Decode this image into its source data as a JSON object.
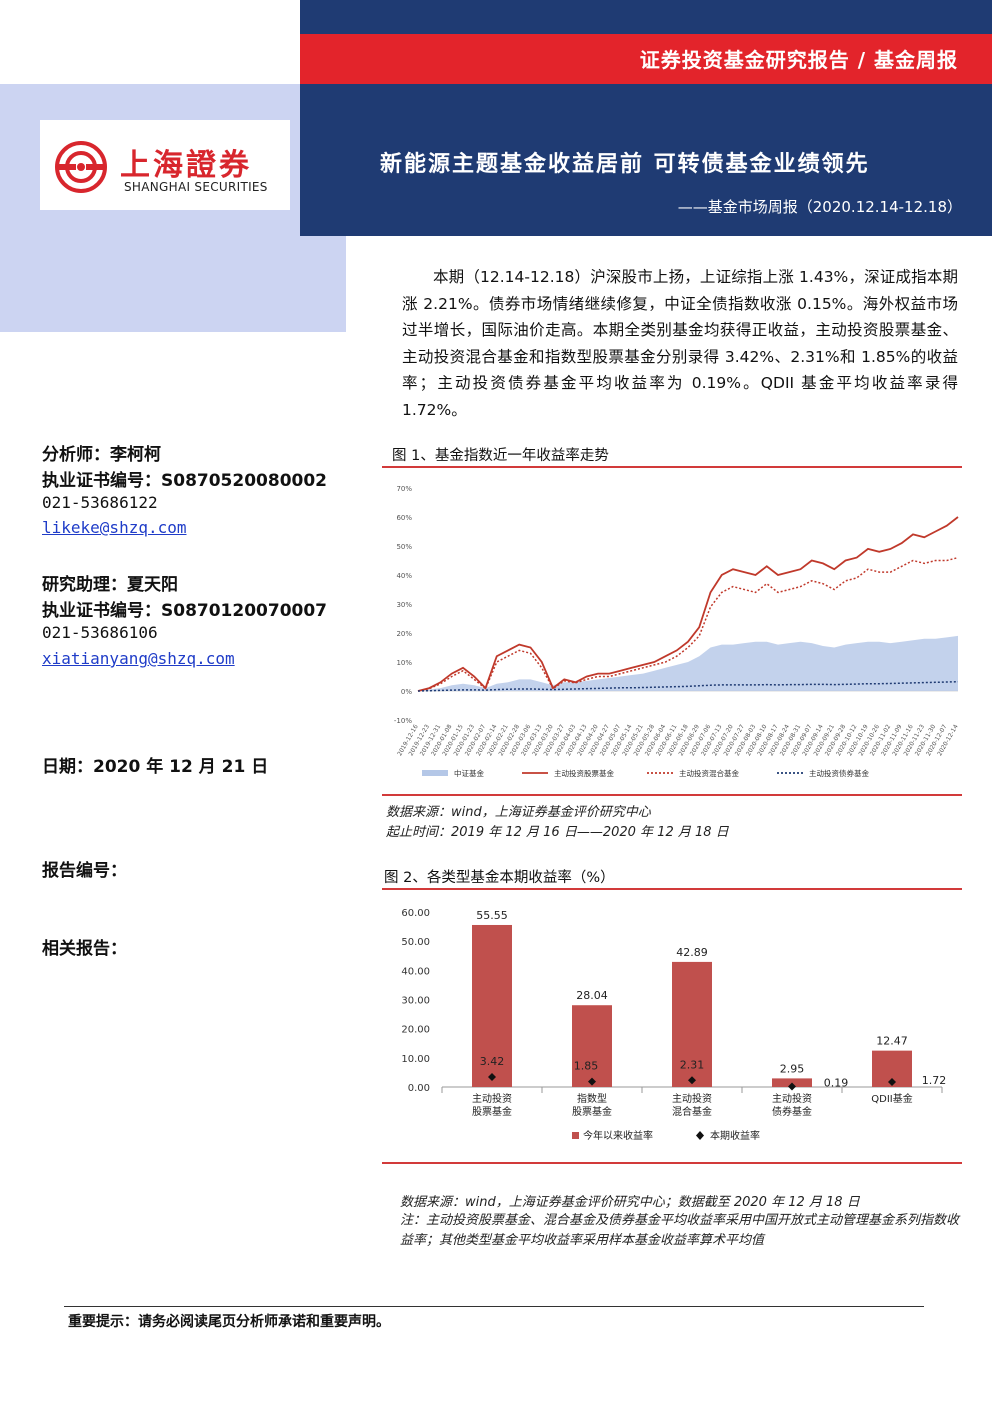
{
  "header": {
    "series_title": "证券投资基金研究报告 / 基金周报",
    "logo_cn": "上海證券",
    "logo_en": "SHANGHAI SECURITIES",
    "main_title": "新能源主题基金收益居前 可转债基金业绩领先",
    "sub_title": "——基金市场周报（2020.12.14-12.18）",
    "colors": {
      "navy": "#1f3b73",
      "red": "#e3242b",
      "light": "#ccd4f2"
    }
  },
  "summary": "本期（12.14-12.18）沪深股市上扬，上证综指上涨 1.43%，深证成指本期涨 2.21%。债券市场情绪继续修复，中证全债指数收涨 0.15%。海外权益市场过半增长，国际油价走高。本期全类别基金均获得正收益，主动投资股票基金、主动投资混合基金和指数型股票基金分别录得 3.42%、2.31%和 1.85%的收益率；主动投资债券基金平均收益率为 0.19%。QDII 基金平均收益率录得 1.72%。",
  "analysts": {
    "analyst_label": "分析师：李柯柯",
    "analyst_cert": "执业证书编号：S0870520080002",
    "analyst_phone": "021-53686122",
    "analyst_email": "likeke@shzq.com",
    "assistant_label": "研究助理：夏天阳",
    "assistant_cert": "执业证书编号：S0870120070007",
    "assistant_phone": "021-53686106",
    "assistant_email": "xiatianyang@shzq.com"
  },
  "meta": {
    "date": "日期：2020 年 12 月 21 日",
    "report_no": "报告编号：",
    "related": "相关报告："
  },
  "figure1": {
    "title": "图 1、基金指数近一年收益率走势",
    "source": "数据来源：wind，上海证券基金评价研究中心",
    "period": "起止时间：2019 年 12 月 16 日——2020 年 12 月 18 日"
  },
  "figure2": {
    "title": "图 2、各类型基金本期收益率（%）",
    "source": "数据来源：wind，上海证券基金评价研究中心；数据截至 2020 年 12 月 18 日",
    "note": "注：主动投资股票基金、混合基金及债券基金平均收益率采用中国开放式主动管理基金系列指数收益率；其他类型基金平均收益率采用样本基金收益率算术平均值"
  },
  "footer": {
    "note": "重要提示：请务必阅读尾页分析师承诺和重要声明。"
  },
  "chart_data": [
    {
      "type": "line",
      "ylim": [
        -10,
        70
      ],
      "yticks": [
        "70%",
        "60%",
        "50%",
        "40%",
        "30%",
        "20%",
        "10%",
        "0%",
        "-10%"
      ],
      "x": [
        "2019-12-16",
        "2019-12-23",
        "2019-12-31",
        "2020-01-08",
        "2020-01-15",
        "2020-01-23",
        "2020-02-07",
        "2020-02-14",
        "2020-02-21",
        "2020-02-28",
        "2020-03-06",
        "2020-03-13",
        "2020-03-20",
        "2020-03-27",
        "2020-04-03",
        "2020-04-13",
        "2020-04-20",
        "2020-04-27",
        "2020-05-07",
        "2020-05-14",
        "2020-05-21",
        "2020-05-28",
        "2020-06-04",
        "2020-06-11",
        "2020-06-18",
        "2020-06-29",
        "2020-07-06",
        "2020-07-13",
        "2020-07-20",
        "2020-07-27",
        "2020-08-03",
        "2020-08-10",
        "2020-08-17",
        "2020-08-24",
        "2020-08-31",
        "2020-09-07",
        "2020-09-14",
        "2020-09-21",
        "2020-09-28",
        "2020-10-12",
        "2020-10-19",
        "2020-10-26",
        "2020-11-02",
        "2020-11-09",
        "2020-11-16",
        "2020-11-23",
        "2020-11-30",
        "2020-12-07",
        "2020-12-14"
      ],
      "series": [
        {
          "name": "中证基金",
          "color": "#b4c7e7",
          "style": "area",
          "values": [
            0,
            0.5,
            1,
            2,
            2.5,
            2,
            1,
            2.5,
            3,
            4,
            4,
            3,
            2,
            3,
            3,
            3.5,
            4,
            4.5,
            5,
            5.5,
            6,
            7,
            8,
            9,
            10,
            12,
            15,
            16,
            16,
            16.5,
            17,
            17,
            16,
            16.5,
            17,
            16.5,
            15.5,
            15,
            16,
            16.5,
            17,
            17,
            16.5,
            17,
            17.5,
            18,
            18,
            18.5,
            19
          ]
        },
        {
          "name": "主动投资股票基金",
          "color": "#c0392b",
          "style": "solid",
          "values": [
            0,
            1,
            3,
            6,
            8,
            5,
            1,
            12,
            14,
            16,
            15,
            10,
            1,
            4,
            3,
            5,
            6,
            6,
            7,
            8,
            9,
            10,
            12,
            14,
            17,
            22,
            34,
            40,
            42,
            41,
            40,
            43,
            40,
            41,
            42,
            45,
            44,
            42,
            45,
            46,
            49,
            48,
            49,
            51,
            54,
            53,
            55,
            57,
            60
          ]
        },
        {
          "name": "主动投资混合基金",
          "color": "#c0392b",
          "style": "dotted",
          "values": [
            0,
            0.8,
            2.5,
            5,
            7,
            4,
            0.8,
            10,
            12,
            14,
            13,
            8,
            0.8,
            3.5,
            2.8,
            4,
            5,
            5,
            6,
            7,
            8,
            9,
            10,
            12,
            15,
            19,
            29,
            34,
            36,
            35,
            34,
            37,
            34,
            35,
            36,
            38,
            37,
            35,
            38,
            39,
            42,
            41,
            41,
            43,
            45,
            44,
            45,
            45,
            46
          ]
        },
        {
          "name": "主动投资债券基金",
          "color": "#1f3b73",
          "style": "dotted",
          "values": [
            0,
            0.1,
            0.2,
            0.3,
            0.4,
            0.4,
            0.3,
            0.5,
            0.6,
            0.7,
            0.7,
            0.6,
            0.5,
            0.6,
            0.7,
            0.8,
            0.9,
            1,
            1.1,
            1.1,
            1.2,
            1.3,
            1.4,
            1.5,
            1.6,
            1.8,
            2,
            2.1,
            2.1,
            2.1,
            2.1,
            2.2,
            2.1,
            2.2,
            2.2,
            2.3,
            2.3,
            2.2,
            2.3,
            2.4,
            2.5,
            2.5,
            2.6,
            2.7,
            2.8,
            2.9,
            3,
            3.1,
            3.2
          ]
        }
      ]
    },
    {
      "type": "bar",
      "ylim": [
        0,
        60
      ],
      "yticks": [
        "60.00",
        "50.00",
        "40.00",
        "30.00",
        "20.00",
        "10.00",
        "0.00"
      ],
      "categories": [
        "主动投资股票基金",
        "指数型股票基金",
        "主动投资混合基金",
        "主动投资债券基金",
        "QDII基金"
      ],
      "category_lines": [
        [
          "主动投资",
          "股票基金"
        ],
        [
          "指数型",
          "股票基金"
        ],
        [
          "主动投资",
          "混合基金"
        ],
        [
          "主动投资",
          "债券基金"
        ],
        [
          "QDII基金",
          ""
        ]
      ],
      "series": [
        {
          "name": "今年以来收益率",
          "color": "#c0504d",
          "values": [
            55.55,
            28.04,
            42.89,
            2.95,
            12.47
          ],
          "labels": [
            "55.55",
            "28.04",
            "42.89",
            "2.95",
            "12.47"
          ]
        },
        {
          "name": "本期收益率",
          "color": "#111111",
          "values": [
            3.42,
            1.85,
            2.31,
            0.19,
            1.72
          ],
          "labels": [
            "3.42",
            "1.85",
            "2.31",
            "0.19",
            "1.72"
          ]
        }
      ]
    }
  ]
}
